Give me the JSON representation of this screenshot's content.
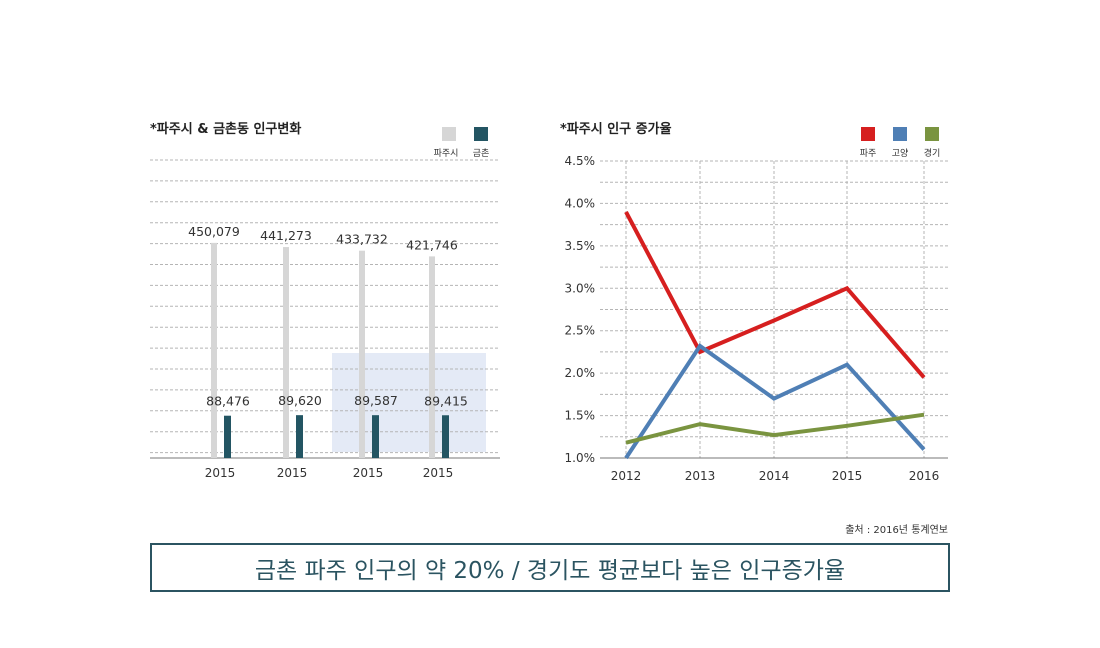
{
  "colors": {
    "grid": "#b5b5b5",
    "paju_bar": "#d6d6d6",
    "geumchon_bar": "#235563",
    "highlight": "#e4eaf6",
    "paju_line": "#d61f1f",
    "goyang_line": "#4f7fb5",
    "gyeonggi_line": "#7a9440",
    "banner": "#2b5461"
  },
  "chart_data": [
    {
      "type": "bar",
      "title": "*파주시 & 금촌동 인구변화",
      "categories": [
        "2015",
        "2015",
        "2015",
        "2015"
      ],
      "series": [
        {
          "name": "파주시",
          "values": [
            450079,
            441273,
            433732,
            421746
          ],
          "labels": [
            "450,079",
            "441,273",
            "433,732",
            "421,746"
          ]
        },
        {
          "name": "금촌",
          "values": [
            88476,
            89620,
            89587,
            89415
          ],
          "labels": [
            "88,476",
            "89,620",
            "89,587",
            "89,415"
          ]
        }
      ],
      "highlight_category_index": [
        2,
        3
      ]
    },
    {
      "type": "line",
      "title": "*파주시 인구 증가율",
      "x": [
        "2012",
        "2013",
        "2014",
        "2015",
        "2016"
      ],
      "yticks": [
        "4.5%",
        "4.0%",
        "3.5%",
        "3.0%",
        "2.5%",
        "2.0%",
        "1.5%",
        "1.0%"
      ],
      "ylim": [
        1.0,
        4.5
      ],
      "series": [
        {
          "name": "파주",
          "values": [
            3.9,
            2.25,
            2.62,
            3.0,
            1.95
          ]
        },
        {
          "name": "고양",
          "values": [
            1.0,
            2.32,
            1.7,
            2.1,
            1.1
          ]
        },
        {
          "name": "경기",
          "values": [
            1.18,
            1.4,
            1.27,
            1.38,
            1.51
          ]
        }
      ]
    }
  ],
  "source": "출처 : 2016년 통계연보",
  "banner": "금촌 파주 인구의 약 20% / 경기도 평균보다 높은 인구증가율"
}
